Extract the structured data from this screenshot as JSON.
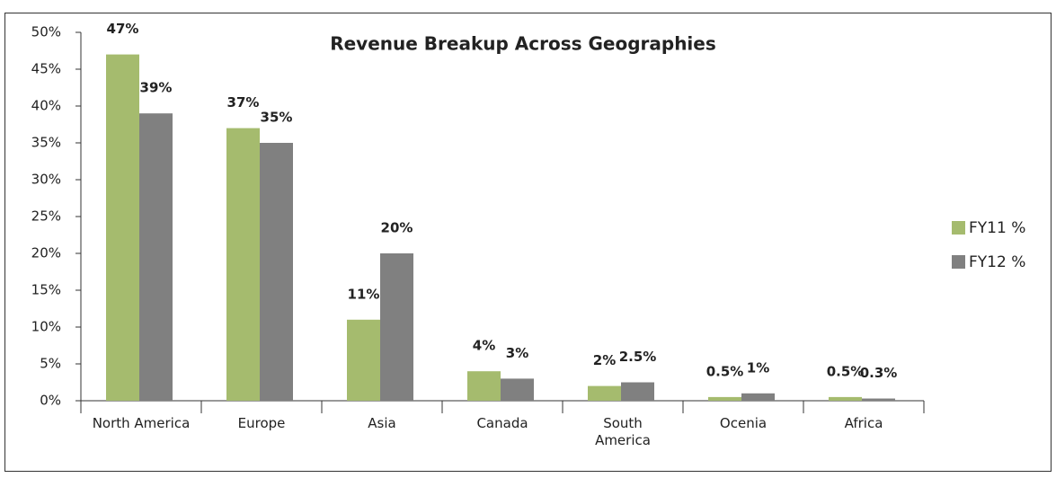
{
  "chart_data": {
    "type": "bar",
    "title": "Revenue Breakup Across Geographies",
    "categories": [
      "North America",
      "Europe",
      "Asia",
      "Canada",
      "South America",
      "Ocenia",
      "Africa"
    ],
    "series": [
      {
        "name": "FY11 %",
        "color": "#a5bb6e",
        "values": [
          47,
          37,
          11,
          4,
          2,
          0.5,
          0.5
        ],
        "value_labels": [
          "47%",
          "37%",
          "11%",
          "4%",
          "2%",
          "0.5%",
          "0.5%"
        ]
      },
      {
        "name": "FY12 %",
        "color": "#808080",
        "values": [
          39,
          35,
          20,
          3,
          2.5,
          1,
          0.3
        ],
        "value_labels": [
          "39%",
          "35%",
          "20%",
          "3%",
          "2.5%",
          "1%",
          "0.3%"
        ]
      }
    ],
    "ylim": [
      0,
      50
    ],
    "yticks": [
      {
        "value": 0,
        "label": "0%"
      },
      {
        "value": 5,
        "label": "5%"
      },
      {
        "value": 10,
        "label": "10%"
      },
      {
        "value": 15,
        "label": "15%"
      },
      {
        "value": 20,
        "label": "20%"
      },
      {
        "value": 25,
        "label": "25%"
      },
      {
        "value": 30,
        "label": "30%"
      },
      {
        "value": 35,
        "label": "35%"
      },
      {
        "value": 40,
        "label": "40%"
      },
      {
        "value": 45,
        "label": "45%"
      },
      {
        "value": 50,
        "label": "50%"
      }
    ],
    "legend": "right",
    "grid": false
  }
}
